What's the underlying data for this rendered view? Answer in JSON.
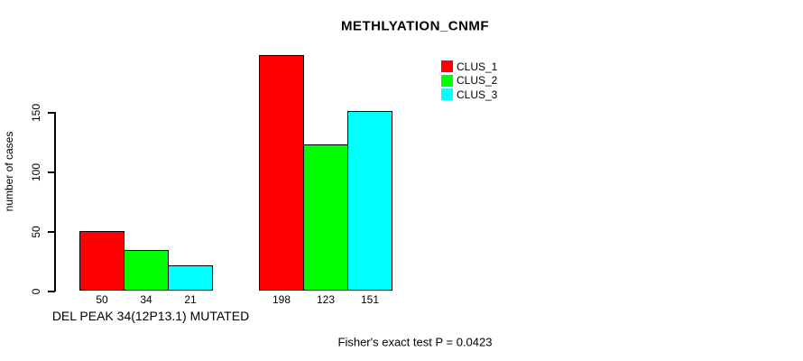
{
  "chart_data": {
    "type": "bar",
    "title": "METHLYATION_CNMF",
    "ylabel": "number of cases",
    "xlabel": "DEL PEAK 34(12P13.1) MUTATED",
    "footnote": "Fisher's exact test P = 0.0423",
    "yticks": [
      0,
      50,
      100,
      150
    ],
    "ylim": [
      0,
      200
    ],
    "grid": false,
    "legend_position": "top-right",
    "series": [
      {
        "name": "CLUS_1",
        "color": "#ff0000"
      },
      {
        "name": "CLUS_2",
        "color": "#00ff00"
      },
      {
        "name": "CLUS_3",
        "color": "#00ffff"
      }
    ],
    "groups": [
      {
        "label": "DEL PEAK 34(12P13.1) MUTATED",
        "values": [
          50,
          34,
          21
        ]
      },
      {
        "label": "",
        "values": [
          198,
          123,
          151
        ]
      }
    ]
  },
  "colors": {
    "bar_outline": "#000000",
    "text": "#000000",
    "background": "#ffffff"
  }
}
